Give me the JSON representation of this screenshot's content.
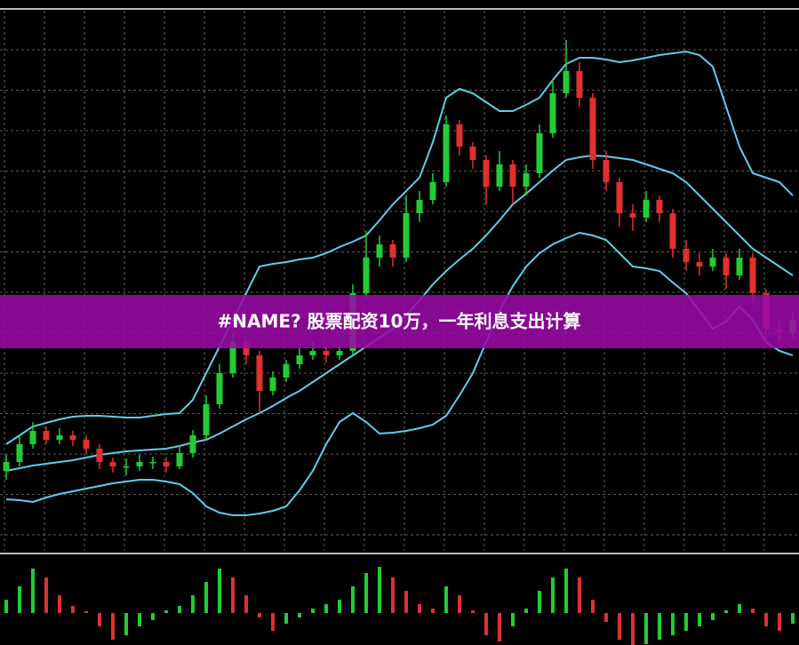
{
  "chart_data": {
    "type": "candlestick",
    "title": "#NAME? 股票配资10万，一年利息支出计算",
    "ylim": [
      0,
      61
    ],
    "up_color": "#22cc33",
    "down_color": "#e03030",
    "band_color": "#5fcde8",
    "candles": [
      [
        9.0,
        10.8,
        8.0,
        10.0
      ],
      [
        10.0,
        13.0,
        9.5,
        12.0
      ],
      [
        12.0,
        14.5,
        11.5,
        13.5
      ],
      [
        13.5,
        14.0,
        12.0,
        12.5
      ],
      [
        12.5,
        13.8,
        12.0,
        13.0
      ],
      [
        13.0,
        13.5,
        11.8,
        12.5
      ],
      [
        12.5,
        13.0,
        11.0,
        11.5
      ],
      [
        11.5,
        12.0,
        9.2,
        10.0
      ],
      [
        10.0,
        10.5,
        8.8,
        9.5
      ],
      [
        9.5,
        10.4,
        8.5,
        9.5
      ],
      [
        9.5,
        10.8,
        9.0,
        10.0
      ],
      [
        10.0,
        10.6,
        9.2,
        10.0
      ],
      [
        10.0,
        10.5,
        8.8,
        9.5
      ],
      [
        9.5,
        11.8,
        9.2,
        11.0
      ],
      [
        11.0,
        13.6,
        10.5,
        13.0
      ],
      [
        13.0,
        17.5,
        12.5,
        16.5
      ],
      [
        16.5,
        21.0,
        16.0,
        20.0
      ],
      [
        20.0,
        24.5,
        19.5,
        23.5
      ],
      [
        23.5,
        24.0,
        21.0,
        22.0
      ],
      [
        22.0,
        22.5,
        15.5,
        18.0
      ],
      [
        18.0,
        20.2,
        17.5,
        19.5
      ],
      [
        19.5,
        21.5,
        19.0,
        21.0
      ],
      [
        21.0,
        22.8,
        20.5,
        22.0
      ],
      [
        22.0,
        23.5,
        21.5,
        22.5
      ],
      [
        22.5,
        23.0,
        21.2,
        22.0
      ],
      [
        22.0,
        23.3,
        21.5,
        22.5
      ],
      [
        22.5,
        30.0,
        22.0,
        29.0
      ],
      [
        29.0,
        36.0,
        28.5,
        33.0
      ],
      [
        33.0,
        35.5,
        32.0,
        34.5
      ],
      [
        34.5,
        35.0,
        32.0,
        33.0
      ],
      [
        33.0,
        40.0,
        32.5,
        38.0
      ],
      [
        38.0,
        40.5,
        37.0,
        39.5
      ],
      [
        39.5,
        42.5,
        39.0,
        41.5
      ],
      [
        41.5,
        49.0,
        41.0,
        48.0
      ],
      [
        48.0,
        48.5,
        44.5,
        45.5
      ],
      [
        45.5,
        46.0,
        43.0,
        44.0
      ],
      [
        44.0,
        44.5,
        39.0,
        41.0
      ],
      [
        41.0,
        45.0,
        40.5,
        43.5
      ],
      [
        43.5,
        44.0,
        39.0,
        41.0
      ],
      [
        41.0,
        43.5,
        40.0,
        42.5
      ],
      [
        42.5,
        48.0,
        42.0,
        47.0
      ],
      [
        47.0,
        53.0,
        46.5,
        51.5
      ],
      [
        51.5,
        57.5,
        51.0,
        54.0
      ],
      [
        54.0,
        55.0,
        50.0,
        51.0
      ],
      [
        51.0,
        51.5,
        43.0,
        44.0
      ],
      [
        44.0,
        45.0,
        40.5,
        41.5
      ],
      [
        41.5,
        42.0,
        36.5,
        38.0
      ],
      [
        38.0,
        39.0,
        36.0,
        37.5
      ],
      [
        37.5,
        40.5,
        37.0,
        39.5
      ],
      [
        39.5,
        40.0,
        37.0,
        38.0
      ],
      [
        38.0,
        38.5,
        33.0,
        34.0
      ],
      [
        34.0,
        35.0,
        31.5,
        32.5
      ],
      [
        32.5,
        33.5,
        31.0,
        32.0
      ],
      [
        32.0,
        34.0,
        31.5,
        33.0
      ],
      [
        33.0,
        33.5,
        29.5,
        31.0
      ],
      [
        31.0,
        34.0,
        30.5,
        33.0
      ],
      [
        33.0,
        33.5,
        28.0,
        29.0
      ],
      [
        29.0,
        29.5,
        23.5,
        25.0
      ],
      [
        25.0,
        26.0,
        23.5,
        24.5
      ],
      [
        24.5,
        27.0,
        24.0,
        26.0
      ]
    ],
    "bands": {
      "upper": [
        12.0,
        13.0,
        14.0,
        14.4,
        14.8,
        15.1,
        15.2,
        15.2,
        15.1,
        15.0,
        15.0,
        15.2,
        15.4,
        15.5,
        17.0,
        20.0,
        23.0,
        26.0,
        29.0,
        32.0,
        32.3,
        32.5,
        32.8,
        33.0,
        33.5,
        34.2,
        34.8,
        35.5,
        37.2,
        39.0,
        40.5,
        42.0,
        46.0,
        51.0,
        52.0,
        51.5,
        50.5,
        49.5,
        49.5,
        50.2,
        51.0,
        53.0,
        54.8,
        55.5,
        55.5,
        55.3,
        55.0,
        55.2,
        55.5,
        55.8,
        56.0,
        56.2,
        55.8,
        54.5,
        50.0,
        45.5,
        42.5,
        42.0,
        41.5,
        40.0
      ],
      "middle": [
        9.0,
        9.3,
        9.6,
        9.8,
        10.0,
        10.2,
        10.5,
        10.8,
        11.0,
        11.2,
        11.3,
        11.4,
        11.5,
        11.8,
        12.2,
        12.5,
        13.2,
        14.0,
        14.8,
        15.5,
        16.3,
        17.2,
        18.0,
        19.0,
        20.0,
        21.0,
        22.0,
        23.0,
        24.0,
        25.0,
        26.5,
        28.2,
        30.0,
        31.5,
        32.8,
        34.0,
        35.5,
        37.2,
        39.0,
        40.2,
        41.5,
        42.8,
        44.0,
        44.3,
        44.5,
        44.4,
        44.2,
        44.0,
        43.5,
        43.0,
        42.5,
        41.5,
        40.0,
        38.5,
        37.0,
        35.5,
        34.0,
        33.0,
        32.0,
        31.0
      ],
      "lower": [
        5.8,
        5.7,
        5.5,
        6.0,
        6.4,
        6.7,
        7.0,
        7.3,
        7.6,
        7.8,
        8.0,
        8.0,
        7.8,
        7.5,
        6.5,
        5.0,
        4.3,
        4.0,
        4.0,
        4.2,
        4.5,
        5.0,
        6.8,
        9.0,
        12.0,
        14.5,
        15.5,
        14.5,
        13.2,
        13.3,
        13.5,
        13.8,
        14.2,
        15.2,
        17.5,
        20.0,
        23.5,
        27.0,
        29.8,
        32.0,
        33.5,
        34.5,
        35.2,
        35.8,
        35.5,
        35.0,
        33.5,
        32.0,
        31.8,
        31.5,
        30.2,
        29.0,
        27.0,
        25.0,
        25.8,
        27.5,
        26.0,
        23.5,
        22.5,
        22.0
      ]
    },
    "histogram": {
      "ylim": [
        -3.6,
        6.0
      ],
      "values": [
        1.5,
        3.0,
        5.0,
        4.0,
        2.0,
        0.8,
        0.2,
        -1.5,
        -3.0,
        -2.5,
        -1.5,
        -0.8,
        0.3,
        0.8,
        2.0,
        3.5,
        5.0,
        4.0,
        2.0,
        -0.5,
        -2.0,
        -1.2,
        -0.5,
        0.5,
        1.0,
        1.5,
        3.0,
        4.5,
        5.2,
        4.0,
        2.5,
        1.0,
        0.5,
        3.0,
        2.0,
        0.3,
        -2.5,
        -3.2,
        -1.5,
        0.5,
        2.5,
        4.0,
        5.0,
        4.0,
        1.5,
        -1.0,
        -3.0,
        -4.0,
        -3.5,
        -3.0,
        -2.5,
        -2.0,
        -1.5,
        -0.8,
        0.3,
        1.0,
        0.5,
        -1.5,
        -2.0,
        -1.2
      ]
    }
  }
}
